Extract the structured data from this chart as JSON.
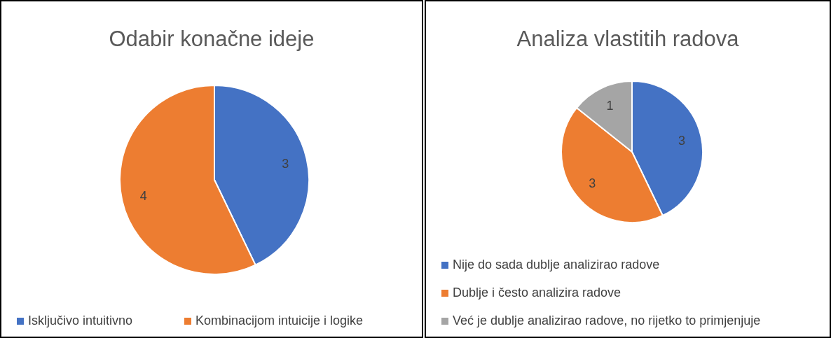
{
  "chart_data": [
    {
      "type": "pie",
      "title": "Odabir konačne ideje",
      "categories": [
        "Isključivo intuitivno",
        "Kombinacijom intuicije i logike"
      ],
      "values": [
        3,
        4
      ],
      "colors": [
        "#4472c4",
        "#ed7d31"
      ],
      "data_labels": true,
      "legend": "bottom"
    },
    {
      "type": "pie",
      "title": "Analiza vlastitih radova",
      "categories": [
        "Nije do sada dublje analizirao radove",
        "Dublje i često analizira radove",
        "Već je dublje analizirao radove, no rijetko to primjenjuje"
      ],
      "values": [
        3,
        3,
        1
      ],
      "colors": [
        "#4472c4",
        "#ed7d31",
        "#a5a5a5"
      ],
      "data_labels": true,
      "legend": "bottom"
    }
  ]
}
